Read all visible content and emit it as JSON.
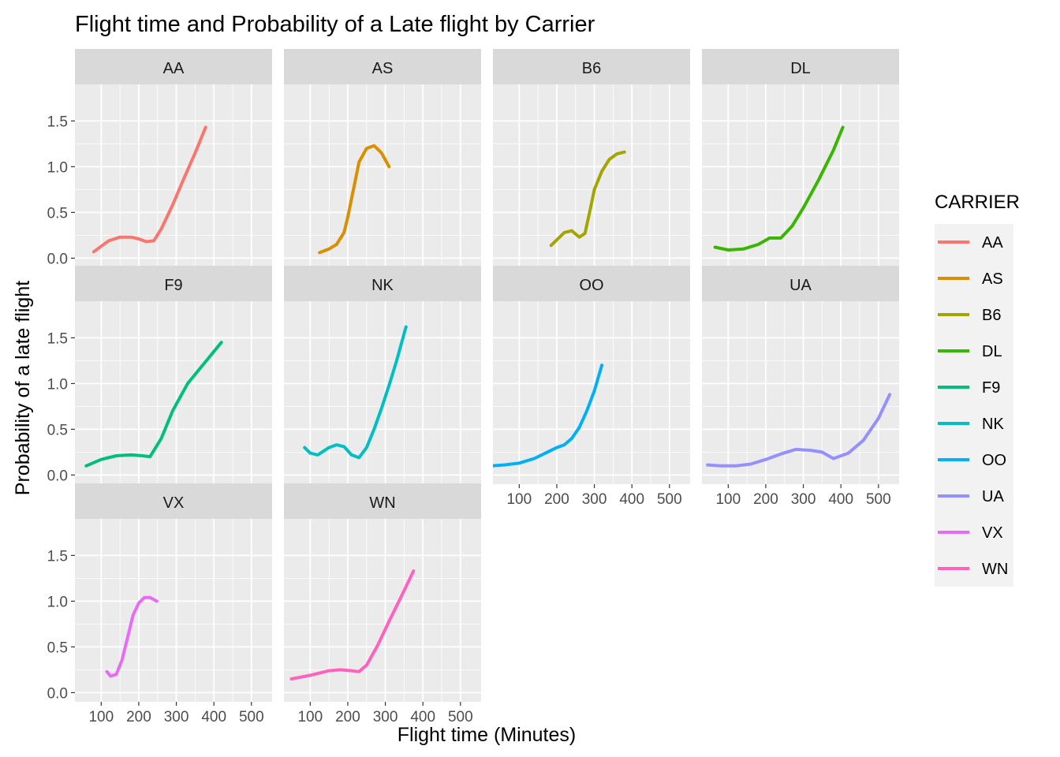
{
  "chart_data": {
    "type": "line",
    "title": "Flight time and Probability of a Late flight by Carrier",
    "xlabel": "Flight time (Minutes)",
    "ylabel": "Probability of a late flight",
    "xlim": [
      30,
      555
    ],
    "ylim": [
      -0.1,
      1.9
    ],
    "x_ticks": [
      100,
      200,
      300,
      400,
      500
    ],
    "x_tick_labels": [
      "100",
      "200",
      "300",
      "400",
      "500"
    ],
    "y_ticks": [
      0.0,
      0.5,
      1.0,
      1.5
    ],
    "y_tick_labels": [
      "0.0",
      "0.5",
      "1.0",
      "1.5"
    ],
    "grid": true,
    "facet_layout": {
      "columns": 4,
      "rows": 3
    },
    "legend": {
      "title": "CARRIER",
      "position": "right"
    },
    "series": [
      {
        "name": "AA",
        "color": "#F8766D",
        "x": [
          80,
          100,
          120,
          150,
          180,
          200,
          220,
          240,
          260,
          290,
          320,
          350,
          378
        ],
        "y": [
          0.07,
          0.13,
          0.19,
          0.23,
          0.23,
          0.21,
          0.18,
          0.19,
          0.32,
          0.58,
          0.87,
          1.15,
          1.43
        ]
      },
      {
        "name": "AS",
        "color": "#D89000",
        "x": [
          125,
          150,
          170,
          190,
          200,
          210,
          220,
          230,
          250,
          270,
          290,
          310
        ],
        "y": [
          0.06,
          0.1,
          0.15,
          0.28,
          0.45,
          0.65,
          0.85,
          1.05,
          1.2,
          1.23,
          1.15,
          1.0
        ]
      },
      {
        "name": "B6",
        "color": "#A3A500",
        "x": [
          185,
          200,
          220,
          240,
          260,
          275,
          290,
          300,
          320,
          340,
          360,
          380
        ],
        "y": [
          0.14,
          0.2,
          0.28,
          0.3,
          0.23,
          0.27,
          0.55,
          0.75,
          0.95,
          1.08,
          1.14,
          1.16
        ]
      },
      {
        "name": "DL",
        "color": "#39B600",
        "x": [
          65,
          100,
          140,
          180,
          210,
          240,
          270,
          300,
          340,
          380,
          405
        ],
        "y": [
          0.12,
          0.09,
          0.1,
          0.15,
          0.22,
          0.22,
          0.35,
          0.55,
          0.85,
          1.18,
          1.43
        ]
      },
      {
        "name": "F9",
        "color": "#00BF7D",
        "x": [
          60,
          100,
          140,
          180,
          210,
          230,
          260,
          290,
          330,
          380,
          420
        ],
        "y": [
          0.1,
          0.17,
          0.21,
          0.22,
          0.21,
          0.2,
          0.4,
          0.7,
          1.0,
          1.25,
          1.45
        ]
      },
      {
        "name": "NK",
        "color": "#00BFC4",
        "x": [
          85,
          100,
          120,
          150,
          170,
          190,
          210,
          230,
          250,
          270,
          290,
          310,
          330,
          355
        ],
        "y": [
          0.3,
          0.24,
          0.22,
          0.3,
          0.33,
          0.31,
          0.22,
          0.19,
          0.3,
          0.5,
          0.73,
          0.98,
          1.25,
          1.62
        ]
      },
      {
        "name": "OO",
        "color": "#00B0F6",
        "x": [
          25,
          60,
          100,
          140,
          170,
          200,
          220,
          240,
          260,
          280,
          300,
          320
        ],
        "y": [
          0.1,
          0.11,
          0.13,
          0.18,
          0.24,
          0.3,
          0.33,
          0.4,
          0.52,
          0.7,
          0.92,
          1.2
        ]
      },
      {
        "name": "UA",
        "color": "#9590FF",
        "x": [
          45,
          80,
          120,
          160,
          200,
          240,
          280,
          320,
          350,
          380,
          420,
          460,
          500,
          530
        ],
        "y": [
          0.11,
          0.1,
          0.1,
          0.12,
          0.17,
          0.23,
          0.28,
          0.27,
          0.25,
          0.18,
          0.24,
          0.38,
          0.62,
          0.88
        ]
      },
      {
        "name": "VX",
        "color": "#E76BF3",
        "x": [
          115,
          125,
          140,
          155,
          170,
          185,
          200,
          215,
          230,
          248
        ],
        "y": [
          0.23,
          0.18,
          0.2,
          0.35,
          0.6,
          0.85,
          0.98,
          1.04,
          1.04,
          1.0
        ]
      },
      {
        "name": "WN",
        "color": "#FF62BC",
        "x": [
          50,
          100,
          150,
          180,
          210,
          230,
          250,
          280,
          310,
          340,
          375
        ],
        "y": [
          0.15,
          0.19,
          0.24,
          0.25,
          0.24,
          0.23,
          0.3,
          0.52,
          0.78,
          1.03,
          1.33
        ]
      }
    ]
  }
}
